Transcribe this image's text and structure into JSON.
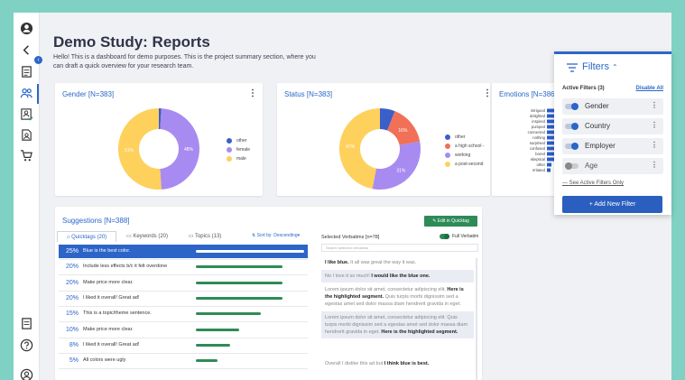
{
  "page": {
    "title": "Demo Study: Reports",
    "description": "Hello! This is a dashboard for demo purposes. This is the project summary section, where you can draft a quick overview for your research team."
  },
  "sidebar": {
    "icons": [
      "user-avatar-icon",
      "chevron-left-icon",
      "reports-icon",
      "people-icon",
      "user-check-icon",
      "document-user-icon",
      "cart-icon",
      "notes-icon",
      "help-icon",
      "account-icon"
    ]
  },
  "gender_card": {
    "title": "Gender [N=383]",
    "chart_data": {
      "type": "pie",
      "categories": [
        "other",
        "female",
        "male"
      ],
      "values": [
        1,
        48,
        51
      ],
      "labels": [
        "",
        "48%",
        "51%"
      ],
      "colors": [
        "#3a5fc8",
        "#a88bf0",
        "#fdd15c"
      ],
      "legend": [
        "other",
        "female",
        "male"
      ]
    }
  },
  "status_card": {
    "title": "Status [N=383]",
    "chart_data": {
      "type": "pie",
      "categories": [
        "other",
        "a high school -",
        "working",
        "a post-second"
      ],
      "values": [
        6,
        16,
        31,
        47
      ],
      "labels": [
        "",
        "16%",
        "31%",
        "47%"
      ],
      "colors": [
        "#3a5fc8",
        "#f07058",
        "#a88bf0",
        "#fdd15c"
      ],
      "legend": [
        "other",
        "a high school -",
        "working",
        "a post-second"
      ]
    }
  },
  "emotions_card": {
    "title": "Emotions [N=386]",
    "chart_data": {
      "type": "bar",
      "categories": [
        "intrigued",
        "delighted",
        "inspired",
        "pumped",
        "connected",
        "nothing",
        "surprised",
        "confused",
        "bored",
        "skeptical",
        "other",
        "irritated"
      ],
      "values": [
        10,
        10,
        9,
        9,
        9,
        8,
        8,
        8,
        8,
        8,
        5,
        4
      ]
    }
  },
  "suggestions": {
    "title": "Suggestions [N=388]",
    "quicktag_button": "Edit in Quicktag",
    "tabs": [
      "Quicktags (20)",
      "Keywords (20)",
      "Topics (13)"
    ],
    "sort_label": "Sort by: Descending",
    "items": [
      {
        "pct": "25%",
        "text": "Blue is the best color.",
        "value": 25
      },
      {
        "pct": "20%",
        "text": "Include less effects b/c it felt overdone",
        "value": 20
      },
      {
        "pct": "20%",
        "text": "Make price more clear.",
        "value": 20
      },
      {
        "pct": "20%",
        "text": "I liked it overall! Great ad!",
        "value": 20
      },
      {
        "pct": "15%",
        "text": "This is a topic/theme sentence.",
        "value": 15
      },
      {
        "pct": "10%",
        "text": "Make price more clear.",
        "value": 10
      },
      {
        "pct": "8%",
        "text": "I liked it overall! Great ad!",
        "value": 8
      },
      {
        "pct": "5%",
        "text": "All colors were ugly",
        "value": 5
      }
    ]
  },
  "verbatims": {
    "title": "Selected Verbatims [n=78]",
    "full_verbatim_label": "Full Verbatim",
    "search_placeholder": "Search selected verbatims",
    "items": [
      {
        "pre": "",
        "bold": "I like blue.",
        "post": " It all was great the way it was."
      },
      {
        "pre": "No I love it so much! ",
        "bold": "I would like the blue one.",
        "post": ""
      },
      {
        "pre": "Lorem ipsum dolor sit amet, consectetur adipiscing elit. ",
        "bold": "Here is the highlighted segment.",
        "post": " Quis turpis morbi dignissim sed a egestas amet sed dolor massa diam hendrerit gravida in eget."
      },
      {
        "pre": "Lorem ipsum dolor sit amet, consectetur adipiscing elit. Quis turpis morbi dignissim sed a egestas amet sed dolor massa diam hendrerit gravida in eget. ",
        "bold": "Here is the highlighted segment.",
        "post": ""
      },
      {
        "pre": "Overall I dislike this ad but ",
        "bold": "I think blue is best.",
        "post": ""
      }
    ]
  },
  "filters": {
    "title": "Filters",
    "active_label": "Active Filters (3)",
    "disable_all": "Disable All",
    "items": [
      {
        "label": "Gender",
        "on": true
      },
      {
        "label": "Country",
        "on": true
      },
      {
        "label": "Employer",
        "on": true
      },
      {
        "label": "Age",
        "on": false
      }
    ],
    "see_active": "See Active Filters Only",
    "add_button": "+ Add New Filter"
  }
}
